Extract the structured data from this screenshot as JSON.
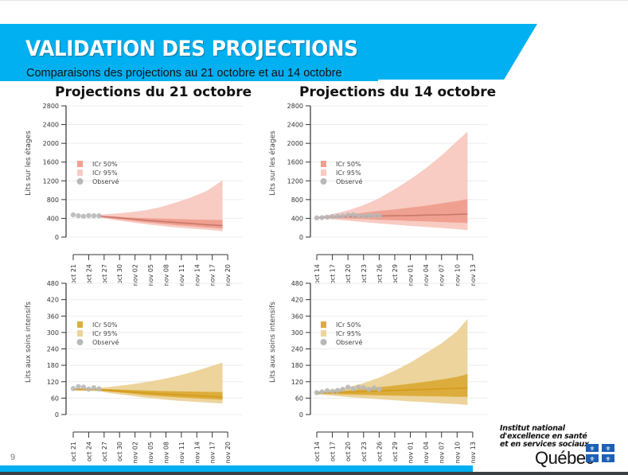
{
  "slide": {
    "title": "VALIDATION DES PROJECTIONS",
    "subtitle": "Comparaisons des projections au 21 octobre et au 14 octobre",
    "page_number": "9",
    "brand_color": "#00b0f0"
  },
  "logo": {
    "line1": "Institut national",
    "line2": "d'excellence en santé",
    "line3": "et en services sociaux",
    "quebec": "Québec",
    "icon": "quebec-flag-icon"
  },
  "columns": [
    {
      "title": "Projections du 21 octobre"
    },
    {
      "title": "Projections du 14 octobre"
    }
  ],
  "legend": {
    "ci50": "ICr 50%",
    "ci95": "ICr 95%",
    "observed": "Observé"
  },
  "colors": {
    "floors_ci50": "#f0a090",
    "floors_ci95": "#f8cbc3",
    "floors_median": "#c8786c",
    "icu_ci50": "#dcad3c",
    "icu_ci95": "#ecd49c",
    "icu_median": "#d49a1c",
    "observed": "#b8b8b8"
  },
  "chart_data": [
    {
      "id": "floors-oct21",
      "type": "area",
      "title": "Projections du 21 octobre",
      "ylabel": "Lits sur les étages",
      "xlabel": "",
      "ylim": [
        0,
        2800
      ],
      "yticks": [
        0,
        400,
        800,
        1200,
        1600,
        2000,
        2400,
        2800
      ],
      "grid": true,
      "legend_position": "middle-left",
      "xticks": [
        "oct 21",
        "oct 24",
        "oct 27",
        "oct 30",
        "nov 02",
        "nov 05",
        "nov 08",
        "nov 11",
        "nov 14",
        "nov 17",
        "nov 20"
      ],
      "x_start": "oct 21",
      "observed": {
        "day": [
          0,
          1,
          2,
          3,
          4,
          5
        ],
        "values": [
          475,
          455,
          445,
          460,
          455,
          455
        ]
      },
      "projection": {
        "day": [
          5,
          8,
          11,
          14,
          17,
          20,
          23,
          26,
          29
        ],
        "median": [
          445,
          420,
          390,
          360,
          335,
          310,
          290,
          265,
          245
        ],
        "ci50_low": [
          430,
          390,
          355,
          315,
          285,
          255,
          230,
          205,
          180
        ],
        "ci50_high": [
          460,
          440,
          420,
          405,
          395,
          385,
          375,
          370,
          365
        ],
        "ci95_low": [
          420,
          365,
          320,
          275,
          240,
          205,
          180,
          160,
          125
        ],
        "ci95_high": [
          475,
          500,
          530,
          570,
          640,
          740,
          850,
          990,
          1210
        ]
      }
    },
    {
      "id": "floors-oct14",
      "type": "area",
      "title": "Projections du 14 octobre",
      "ylabel": "Lits sur les étages",
      "xlabel": "",
      "ylim": [
        0,
        2800
      ],
      "yticks": [
        0,
        400,
        800,
        1200,
        1600,
        2000,
        2400,
        2800
      ],
      "grid": true,
      "legend_position": "middle-left",
      "xticks": [
        "oct 14",
        "oct 17",
        "oct 20",
        "oct 23",
        "oct 26",
        "oct 29",
        "nov 01",
        "nov 04",
        "nov 07",
        "nov 10",
        "nov 13"
      ],
      "x_start": "oct 14",
      "observed": {
        "day": [
          0,
          1,
          2,
          3,
          4,
          5,
          6,
          7,
          8,
          9,
          10,
          11,
          12
        ],
        "values": [
          410,
          415,
          425,
          440,
          445,
          450,
          470,
          475,
          455,
          450,
          460,
          460,
          455
        ]
      },
      "projection": {
        "day": [
          0,
          3,
          6,
          9,
          12,
          15,
          18,
          21,
          24,
          27,
          29
        ],
        "median": [
          415,
          425,
          435,
          440,
          450,
          455,
          460,
          470,
          475,
          485,
          490
        ],
        "ci50_low": [
          410,
          405,
          395,
          385,
          370,
          360,
          345,
          335,
          320,
          310,
          300
        ],
        "ci50_high": [
          420,
          450,
          480,
          520,
          560,
          590,
          630,
          670,
          720,
          770,
          810
        ],
        "ci95_low": [
          405,
          380,
          350,
          320,
          290,
          265,
          240,
          215,
          195,
          170,
          150
        ],
        "ci95_high": [
          425,
          490,
          570,
          680,
          830,
          1020,
          1230,
          1470,
          1740,
          2050,
          2250
        ]
      }
    },
    {
      "id": "icu-oct21",
      "type": "area",
      "title": "",
      "ylabel": "Lits aux soins intensifs",
      "xlabel": "",
      "ylim": [
        0,
        480
      ],
      "yticks": [
        0,
        60,
        120,
        180,
        240,
        300,
        360,
        420,
        480
      ],
      "grid": true,
      "legend_position": "middle-left",
      "xticks": [
        "oct 21",
        "oct 24",
        "oct 27",
        "oct 30",
        "nov 02",
        "nov 05",
        "nov 08",
        "nov 11",
        "nov 14",
        "nov 17",
        "nov 20"
      ],
      "x_start": "oct 21",
      "observed": {
        "day": [
          0,
          1,
          2,
          3,
          4,
          5
        ],
        "values": [
          95,
          102,
          100,
          93,
          98,
          94
        ]
      },
      "projection": {
        "day": [
          0,
          5,
          8,
          11,
          14,
          17,
          20,
          23,
          26,
          29
        ],
        "median": [
          92,
          91,
          87,
          83,
          79,
          76,
          73,
          70,
          67,
          64
        ],
        "ci50_low": [
          90,
          88,
          82,
          77,
          71,
          67,
          63,
          60,
          57,
          54
        ],
        "ci50_high": [
          94,
          94,
          92,
          90,
          88,
          86,
          85,
          84,
          83,
          82
        ],
        "ci95_low": [
          88,
          85,
          76,
          69,
          62,
          56,
          51,
          47,
          44,
          40
        ],
        "ci95_high": [
          96,
          97,
          103,
          110,
          118,
          128,
          140,
          155,
          172,
          190
        ]
      }
    },
    {
      "id": "icu-oct14",
      "type": "area",
      "title": "",
      "ylabel": "Lits aux soins intensifs",
      "xlabel": "",
      "ylim": [
        0,
        480
      ],
      "yticks": [
        0,
        60,
        120,
        180,
        240,
        300,
        360,
        420,
        480
      ],
      "grid": true,
      "legend_position": "middle-left",
      "xticks": [
        "oct 14",
        "oct 17",
        "oct 20",
        "oct 23",
        "oct 26",
        "oct 29",
        "nov 01",
        "nov 04",
        "nov 07",
        "nov 10",
        "nov 13"
      ],
      "x_start": "oct 14",
      "observed": {
        "day": [
          0,
          1,
          2,
          3,
          4,
          5,
          6,
          7,
          8,
          9,
          10,
          11,
          12
        ],
        "values": [
          80,
          83,
          87,
          85,
          88,
          92,
          100,
          94,
          100,
          98,
          92,
          97,
          93
        ]
      },
      "projection": {
        "day": [
          0,
          3,
          6,
          9,
          12,
          15,
          18,
          21,
          24,
          27,
          29
        ],
        "median": [
          78,
          80,
          82,
          84,
          86,
          88,
          90,
          92,
          94,
          96,
          97
        ],
        "ci50_low": [
          76,
          75,
          73,
          72,
          70,
          69,
          68,
          67,
          66,
          65,
          65
        ],
        "ci50_high": [
          80,
          84,
          88,
          94,
          100,
          106,
          113,
          120,
          128,
          138,
          148
        ],
        "ci95_low": [
          74,
          69,
          64,
          60,
          56,
          52,
          48,
          45,
          41,
          38,
          35
        ],
        "ci95_high": [
          82,
          90,
          100,
          115,
          135,
          160,
          190,
          225,
          260,
          305,
          350
        ]
      }
    }
  ]
}
